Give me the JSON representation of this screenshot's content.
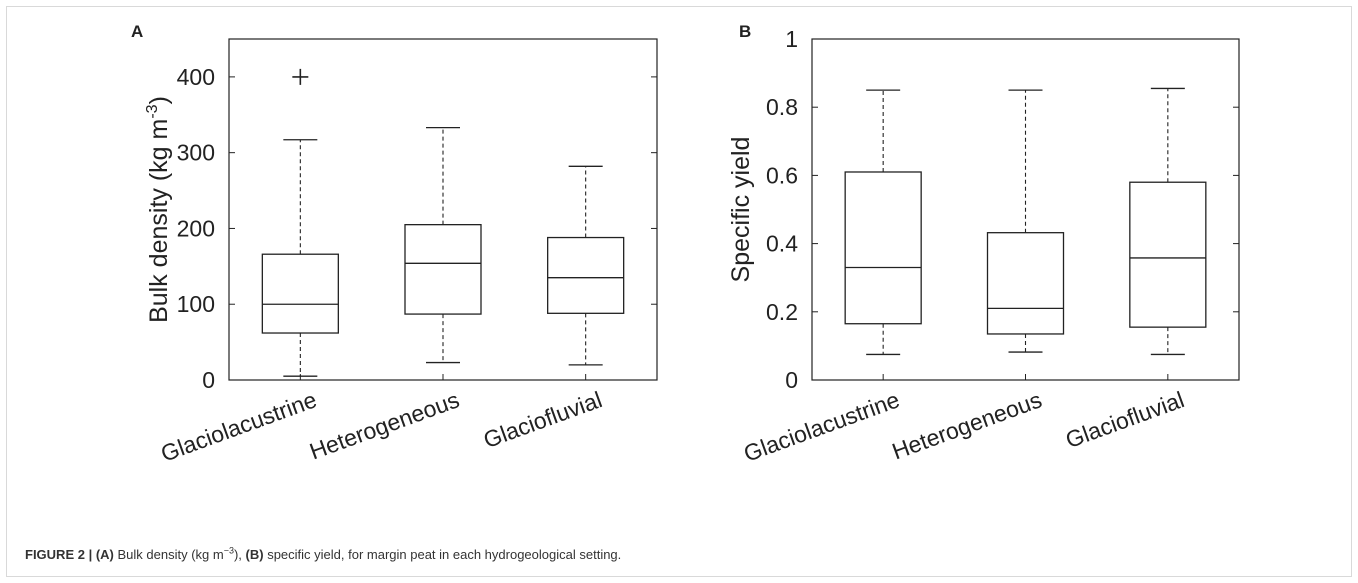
{
  "chart_data": [
    {
      "type": "box",
      "panel_label": "A",
      "ylabel": "Bulk density (kg m",
      "ylabel_exp": "-3",
      "ylabel_close": ")",
      "ylim": [
        0,
        450
      ],
      "yticks": [
        0,
        100,
        200,
        300,
        400
      ],
      "ytick_labels": [
        "0",
        "100",
        "200",
        "300",
        "400"
      ],
      "categories": [
        "Glaciolacustrine",
        "Heterogeneous",
        "Glaciofluvial"
      ],
      "boxes": [
        {
          "whisker_low": 5,
          "q1": 62,
          "median": 100,
          "q3": 166,
          "whisker_high": 317,
          "outliers": [
            400
          ]
        },
        {
          "whisker_low": 23,
          "q1": 87,
          "median": 154,
          "q3": 205,
          "whisker_high": 333,
          "outliers": []
        },
        {
          "whisker_low": 20,
          "q1": 88,
          "median": 135,
          "q3": 188,
          "whisker_high": 282,
          "outliers": []
        }
      ]
    },
    {
      "type": "box",
      "panel_label": "B",
      "ylabel": "Specific yield",
      "ylim": [
        0,
        1
      ],
      "yticks": [
        0,
        0.2,
        0.4,
        0.6,
        0.8,
        1
      ],
      "ytick_labels": [
        "0",
        "0.2",
        "0.4",
        "0.6",
        "0.8",
        "1"
      ],
      "categories": [
        "Glaciolacustrine",
        "Heterogeneous",
        "Glaciofluvial"
      ],
      "boxes": [
        {
          "whisker_low": 0.075,
          "q1": 0.165,
          "median": 0.33,
          "q3": 0.61,
          "whisker_high": 0.85,
          "outliers": []
        },
        {
          "whisker_low": 0.082,
          "q1": 0.135,
          "median": 0.21,
          "q3": 0.432,
          "whisker_high": 0.85,
          "outliers": []
        },
        {
          "whisker_low": 0.075,
          "q1": 0.155,
          "median": 0.358,
          "q3": 0.58,
          "whisker_high": 0.855,
          "outliers": []
        }
      ]
    }
  ],
  "caption": {
    "label": "FIGURE 2 |",
    "part_a": "(A)",
    "text_a": " Bulk density (kg m",
    "exp_a": "−3",
    "text_a2": "), ",
    "part_b": "(B)",
    "text_b": " specific yield, for margin peat in each hydrogeological setting."
  },
  "colors": {
    "axis": "#222222",
    "box": "#222222",
    "background": "#ffffff"
  }
}
